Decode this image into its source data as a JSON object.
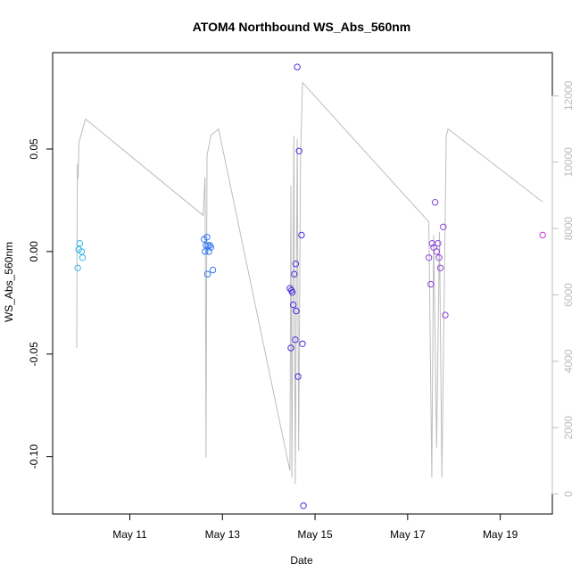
{
  "chart_data": {
    "type": "scatter",
    "title": "ATOM4 Northbound WS_Abs_560nm",
    "xlabel": "Date",
    "ylabel": "WS_Abs_560nm",
    "x_axis": {
      "unit": "days",
      "range": [
        "2016-05-09T08:00",
        "2016-05-20T03:00"
      ],
      "ticks": [
        {
          "x": "2016-05-11",
          "label": "May 11"
        },
        {
          "x": "2016-05-13",
          "label": "May 13"
        },
        {
          "x": "2016-05-15",
          "label": "May 15"
        },
        {
          "x": "2016-05-17",
          "label": "May 17"
        },
        {
          "x": "2016-05-19",
          "label": "May 19"
        }
      ]
    },
    "y_axis": {
      "range": [
        -0.128,
        0.097
      ],
      "ticks": [
        {
          "y": -0.1,
          "label": "-0.10"
        },
        {
          "y": -0.05,
          "label": "-0.05"
        },
        {
          "y": 0.0,
          "label": "0.00"
        },
        {
          "y": 0.05,
          "label": "0.05"
        }
      ]
    },
    "y2_axis": {
      "range": [
        -600,
        13300
      ],
      "ticks": [
        {
          "y": 0,
          "label": "0"
        },
        {
          "y": 2000,
          "label": "2000"
        },
        {
          "y": 4000,
          "label": "4000"
        },
        {
          "y": 6000,
          "label": "6000"
        },
        {
          "y": 8000,
          "label": "8000"
        },
        {
          "y": 10000,
          "label": "10000"
        },
        {
          "y": 12000,
          "label": "12000"
        }
      ],
      "color": "#bdbdbd"
    },
    "grid": false,
    "marker": "open-circle",
    "points": [
      {
        "x": "2016-05-09T21:00",
        "y": -0.008,
        "color": "#33b5e8"
      },
      {
        "x": "2016-05-09T21:30",
        "y": 0.001,
        "color": "#33b5e8"
      },
      {
        "x": "2016-05-09T22:00",
        "y": 0.004,
        "color": "#33b5e8"
      },
      {
        "x": "2016-05-09T23:00",
        "y": 0.0,
        "color": "#33b5e8"
      },
      {
        "x": "2016-05-09T23:30",
        "y": -0.003,
        "color": "#33b5e8"
      },
      {
        "x": "2016-05-12T14:30",
        "y": 0.006,
        "color": "#3377f0"
      },
      {
        "x": "2016-05-12T15:00",
        "y": 0.0,
        "color": "#3377f0"
      },
      {
        "x": "2016-05-12T15:30",
        "y": 0.003,
        "color": "#3377f0"
      },
      {
        "x": "2016-05-12T16:00",
        "y": 0.007,
        "color": "#3377f0"
      },
      {
        "x": "2016-05-12T16:15",
        "y": -0.011,
        "color": "#3377f0"
      },
      {
        "x": "2016-05-12T16:30",
        "y": 0.003,
        "color": "#3377f0"
      },
      {
        "x": "2016-05-12T17:00",
        "y": 0.0,
        "color": "#3377f0"
      },
      {
        "x": "2016-05-12T17:30",
        "y": 0.003,
        "color": "#3377f0"
      },
      {
        "x": "2016-05-12T18:00",
        "y": 0.002,
        "color": "#3377f0"
      },
      {
        "x": "2016-05-12T19:00",
        "y": -0.009,
        "color": "#3377f0"
      },
      {
        "x": "2016-05-14T11:00",
        "y": -0.018,
        "color": "#4a2ee0"
      },
      {
        "x": "2016-05-14T11:30",
        "y": -0.047,
        "color": "#4a2ee0"
      },
      {
        "x": "2016-05-14T11:45",
        "y": -0.019,
        "color": "#4a2ee0"
      },
      {
        "x": "2016-05-14T12:15",
        "y": -0.02,
        "color": "#4a2ee0"
      },
      {
        "x": "2016-05-14T12:45",
        "y": -0.026,
        "color": "#4a2ee0"
      },
      {
        "x": "2016-05-14T13:15",
        "y": -0.011,
        "color": "#4a2ee0"
      },
      {
        "x": "2016-05-14T13:45",
        "y": -0.043,
        "color": "#4a2ee0"
      },
      {
        "x": "2016-05-14T14:00",
        "y": -0.006,
        "color": "#4a2ee0"
      },
      {
        "x": "2016-05-14T14:15",
        "y": -0.029,
        "color": "#4a2ee0"
      },
      {
        "x": "2016-05-14T14:45",
        "y": 0.09,
        "color": "#4a2ee0"
      },
      {
        "x": "2016-05-14T15:15",
        "y": -0.061,
        "color": "#4a2ee0"
      },
      {
        "x": "2016-05-14T15:45",
        "y": 0.049,
        "color": "#4a2ee0"
      },
      {
        "x": "2016-05-14T17:00",
        "y": 0.008,
        "color": "#4a2ee0"
      },
      {
        "x": "2016-05-14T17:30",
        "y": -0.045,
        "color": "#4a2ee0"
      },
      {
        "x": "2016-05-14T18:00",
        "y": -0.124,
        "color": "#4a2ee0"
      },
      {
        "x": "2016-05-17T11:00",
        "y": -0.003,
        "color": "#8a44e0"
      },
      {
        "x": "2016-05-17T12:00",
        "y": -0.016,
        "color": "#8a44e0"
      },
      {
        "x": "2016-05-17T12:45",
        "y": 0.004,
        "color": "#8a44e0"
      },
      {
        "x": "2016-05-17T13:30",
        "y": 0.002,
        "color": "#8a44e0"
      },
      {
        "x": "2016-05-17T14:15",
        "y": 0.024,
        "color": "#8a44e0"
      },
      {
        "x": "2016-05-17T15:00",
        "y": 0.0,
        "color": "#8a44e0"
      },
      {
        "x": "2016-05-17T15:45",
        "y": 0.004,
        "color": "#8a44e0"
      },
      {
        "x": "2016-05-17T16:15",
        "y": -0.003,
        "color": "#8a44e0"
      },
      {
        "x": "2016-05-17T17:00",
        "y": -0.008,
        "color": "#8a44e0"
      },
      {
        "x": "2016-05-17T18:30",
        "y": 0.012,
        "color": "#8a44e0"
      },
      {
        "x": "2016-05-17T19:30",
        "y": -0.031,
        "color": "#8a44e0"
      },
      {
        "x": "2016-05-19T22:00",
        "y": 0.008,
        "color": "#c43ad6"
      }
    ],
    "line_series": {
      "axis": "right",
      "color": "#bdbdbd",
      "points": [
        {
          "x": "2016-05-09T20:30",
          "y": 4400
        },
        {
          "x": "2016-05-09T20:50",
          "y": 9950
        },
        {
          "x": "2016-05-09T21:10",
          "y": 9500
        },
        {
          "x": "2016-05-09T21:40",
          "y": 10600
        },
        {
          "x": "2016-05-10T01:00",
          "y": 11300
        },
        {
          "x": "2016-05-12T14:00",
          "y": 8400
        },
        {
          "x": "2016-05-12T15:00",
          "y": 9550
        },
        {
          "x": "2016-05-12T15:30",
          "y": 1100
        },
        {
          "x": "2016-05-12T16:00",
          "y": 10200
        },
        {
          "x": "2016-05-12T18:00",
          "y": 10800
        },
        {
          "x": "2016-05-12T22:00",
          "y": 11000
        },
        {
          "x": "2016-05-14T11:00",
          "y": 700
        },
        {
          "x": "2016-05-14T11:30",
          "y": 9300
        },
        {
          "x": "2016-05-14T12:00",
          "y": 500
        },
        {
          "x": "2016-05-14T13:00",
          "y": 10800
        },
        {
          "x": "2016-05-14T13:45",
          "y": 300
        },
        {
          "x": "2016-05-14T14:45",
          "y": 10700
        },
        {
          "x": "2016-05-14T15:30",
          "y": 1300
        },
        {
          "x": "2016-05-14T16:30",
          "y": 10100
        },
        {
          "x": "2016-05-14T17:30",
          "y": 12400
        },
        {
          "x": "2016-05-17T11:00",
          "y": 8200
        },
        {
          "x": "2016-05-17T12:30",
          "y": 500
        },
        {
          "x": "2016-05-17T13:30",
          "y": 7800
        },
        {
          "x": "2016-05-17T15:00",
          "y": 1400
        },
        {
          "x": "2016-05-17T16:30",
          "y": 7900
        },
        {
          "x": "2016-05-17T17:45",
          "y": 500
        },
        {
          "x": "2016-05-17T20:00",
          "y": 10800
        },
        {
          "x": "2016-05-17T21:00",
          "y": 11000
        },
        {
          "x": "2016-05-19T22:00",
          "y": 8800
        }
      ]
    }
  }
}
